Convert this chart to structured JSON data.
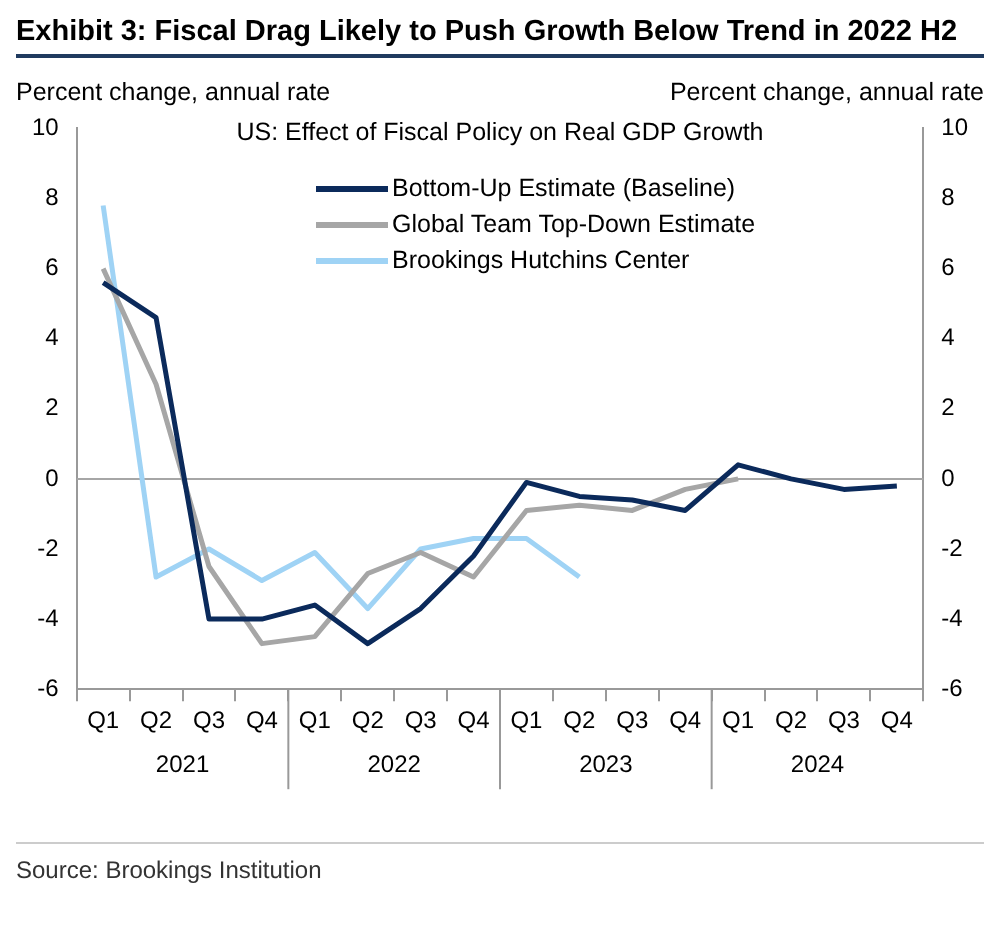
{
  "chart_data": {
    "type": "line",
    "title": "Exhibit 3: Fiscal Drag Likely to Push Growth Below Trend in 2022 H2",
    "subtitle": "US: Effect of Fiscal Policy on Real GDP Growth",
    "ylabel": "Percent change, annual rate",
    "y2label": "Percent change, annual rate",
    "categories": [
      "Q1",
      "Q2",
      "Q3",
      "Q4",
      "Q1",
      "Q2",
      "Q3",
      "Q4",
      "Q1",
      "Q2",
      "Q3",
      "Q4",
      "Q1",
      "Q2",
      "Q3",
      "Q4"
    ],
    "series": [
      {
        "name": "Bottom-Up Estimate (Baseline)",
        "color": "#0b2a5b",
        "values": [
          5.6,
          4.6,
          -4.0,
          -4.0,
          -3.6,
          -4.7,
          -3.7,
          -2.2,
          -0.1,
          -0.5,
          -0.6,
          -0.9,
          0.4,
          0.0,
          -0.3,
          -0.2
        ]
      },
      {
        "name": "Global Team Top-Down Estimate",
        "color": "#a6a6a6",
        "values": [
          6.0,
          2.7,
          -2.5,
          -4.7,
          -4.5,
          -2.7,
          -2.1,
          -2.8,
          -0.9,
          -0.75,
          -0.9,
          -0.3,
          0.0,
          null,
          null,
          null
        ]
      },
      {
        "name": "Brookings Hutchins Center",
        "color": "#9fd3f5",
        "values": [
          7.8,
          -2.8,
          -2.0,
          -2.9,
          -2.1,
          -3.7,
          -2.0,
          -1.7,
          -1.7,
          -2.8,
          null,
          null,
          null,
          null,
          null,
          null
        ]
      }
    ],
    "ylim": [
      -6,
      10
    ],
    "yticks": [
      -6,
      -4,
      -2,
      0,
      2,
      4,
      6,
      8,
      10
    ],
    "y2lim": [
      -6,
      10
    ],
    "y2ticks": [
      -6,
      -4,
      -2,
      0,
      2,
      4,
      6,
      8,
      10
    ],
    "ref_lines": [
      {
        "axis": "y",
        "value": 0,
        "color": "#a6a6a6"
      }
    ],
    "grid": false,
    "legend": "top",
    "marker": "none",
    "line_style": "solid",
    "annotations": [
      "2021",
      "2022",
      "2023",
      "2024",
      "Source: Brookings Institution"
    ]
  }
}
